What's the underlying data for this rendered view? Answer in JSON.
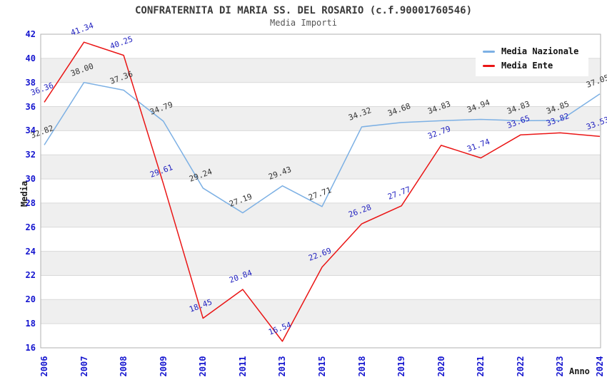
{
  "chart_data": {
    "type": "line",
    "title": "CONFRATERNITA DI MARIA SS. DEL ROSARIO (c.f.90001760546)",
    "subtitle": "Media Importi",
    "xlabel": "Anno",
    "ylabel": "Media",
    "categories": [
      "2006",
      "2007",
      "2008",
      "2009",
      "2010",
      "2011",
      "2013",
      "2015",
      "2018",
      "2019",
      "2020",
      "2021",
      "2022",
      "2023",
      "2024"
    ],
    "series": [
      {
        "name": "Media Nazionale",
        "color": "#7cb0e4",
        "label_color": "#333333",
        "values": [
          32.82,
          38.0,
          37.36,
          34.79,
          29.24,
          27.19,
          29.43,
          27.71,
          34.32,
          34.68,
          34.83,
          34.94,
          34.83,
          34.85,
          37.05
        ]
      },
      {
        "name": "Media Ente",
        "color": "#ea1515",
        "label_color": "#2323c0",
        "values": [
          36.36,
          41.34,
          40.25,
          29.61,
          18.45,
          20.84,
          16.54,
          22.69,
          26.28,
          27.77,
          32.79,
          31.74,
          33.65,
          33.82,
          33.53
        ]
      }
    ],
    "ylim": [
      16,
      42
    ],
    "ytick_step": 2,
    "y_ticks": [
      16,
      18,
      20,
      22,
      24,
      26,
      28,
      30,
      32,
      34,
      36,
      38,
      40,
      42
    ],
    "grid": "horizontal-bands",
    "band_color": "#efefef",
    "gridline_color": "#d9d9d9",
    "border_color": "#b0b0b0",
    "tick_label_color": "#1414cf",
    "legend_position": "top-right"
  }
}
